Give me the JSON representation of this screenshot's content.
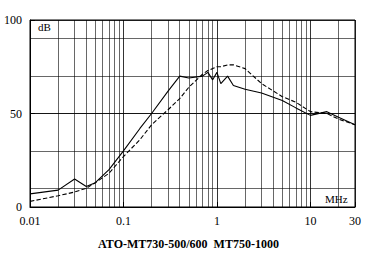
{
  "chart_data": {
    "type": "line",
    "title": "ATO-MT730-500/600  MT750-1000",
    "x_label": "MHz",
    "y_label": "dB",
    "log": "x",
    "grid": true,
    "x": [
      0.01,
      0.02,
      0.03,
      0.04,
      0.05,
      0.07,
      0.1,
      0.15,
      0.2,
      0.3,
      0.4,
      0.5,
      0.7,
      0.8,
      0.9,
      1,
      1.1,
      1.3,
      1.5,
      2,
      3,
      5,
      7,
      10,
      15,
      20,
      30
    ],
    "series": [
      {
        "color": "#000000",
        "line_style": "solid",
        "values": [
          7,
          9,
          15,
          11,
          13,
          20,
          30,
          42,
          50,
          62,
          70,
          69,
          70,
          72,
          68,
          72,
          66,
          70,
          65,
          63,
          61,
          57,
          53,
          49,
          51,
          48,
          44
        ]
      },
      {
        "color": "#000000",
        "line_style": "dashed",
        "values": [
          3,
          6,
          8,
          10,
          13,
          18,
          27,
          36,
          44,
          52,
          58,
          64,
          71,
          73,
          74,
          75,
          75,
          76,
          76,
          74,
          66,
          59,
          56,
          51,
          50,
          47,
          44
        ]
      }
    ],
    "xlim": [
      0.01,
      30
    ],
    "xticks": [
      0.01,
      0.1,
      1,
      10,
      30
    ],
    "ylim": [
      0,
      100
    ],
    "yticks": [
      0,
      50,
      100
    ]
  }
}
